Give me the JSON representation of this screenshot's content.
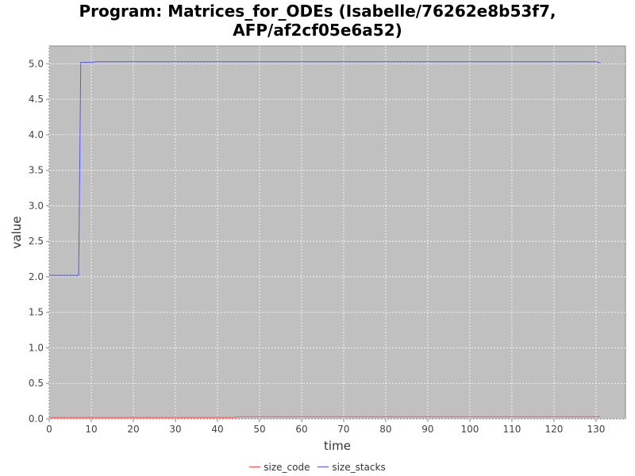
{
  "chart_data": {
    "type": "line",
    "title_lines": [
      "Program: Matrices_for_ODEs (Isabelle/76262e8b53f7,",
      "AFP/af2cf05e6a52)"
    ],
    "xlabel": "time",
    "ylabel": "value",
    "xlim": [
      0,
      137
    ],
    "ylim": [
      0,
      5.25
    ],
    "xticks": [
      0,
      10,
      20,
      30,
      40,
      50,
      60,
      70,
      80,
      90,
      100,
      110,
      120,
      130
    ],
    "yticks": [
      "0.0",
      "0.5",
      "1.0",
      "1.5",
      "2.0",
      "2.5",
      "3.0",
      "3.5",
      "4.0",
      "4.5",
      "5.0"
    ],
    "grid": true,
    "legend_position": "bottom",
    "background": "#c0c0c0",
    "series": [
      {
        "name": "size_code",
        "color": "#ff5555",
        "points": [
          [
            0,
            0.01
          ],
          [
            1,
            0.02
          ],
          [
            10,
            0.02
          ],
          [
            44,
            0.02
          ],
          [
            45,
            0.03
          ],
          [
            130,
            0.03
          ],
          [
            131,
            0.03
          ]
        ]
      },
      {
        "name": "size_stacks",
        "color": "#5555ff",
        "points": [
          [
            0,
            2.02
          ],
          [
            7,
            2.02
          ],
          [
            7.5,
            5.02
          ],
          [
            10.5,
            5.02
          ],
          [
            11,
            5.03
          ],
          [
            130,
            5.03
          ],
          [
            131,
            5.01
          ]
        ]
      }
    ]
  }
}
